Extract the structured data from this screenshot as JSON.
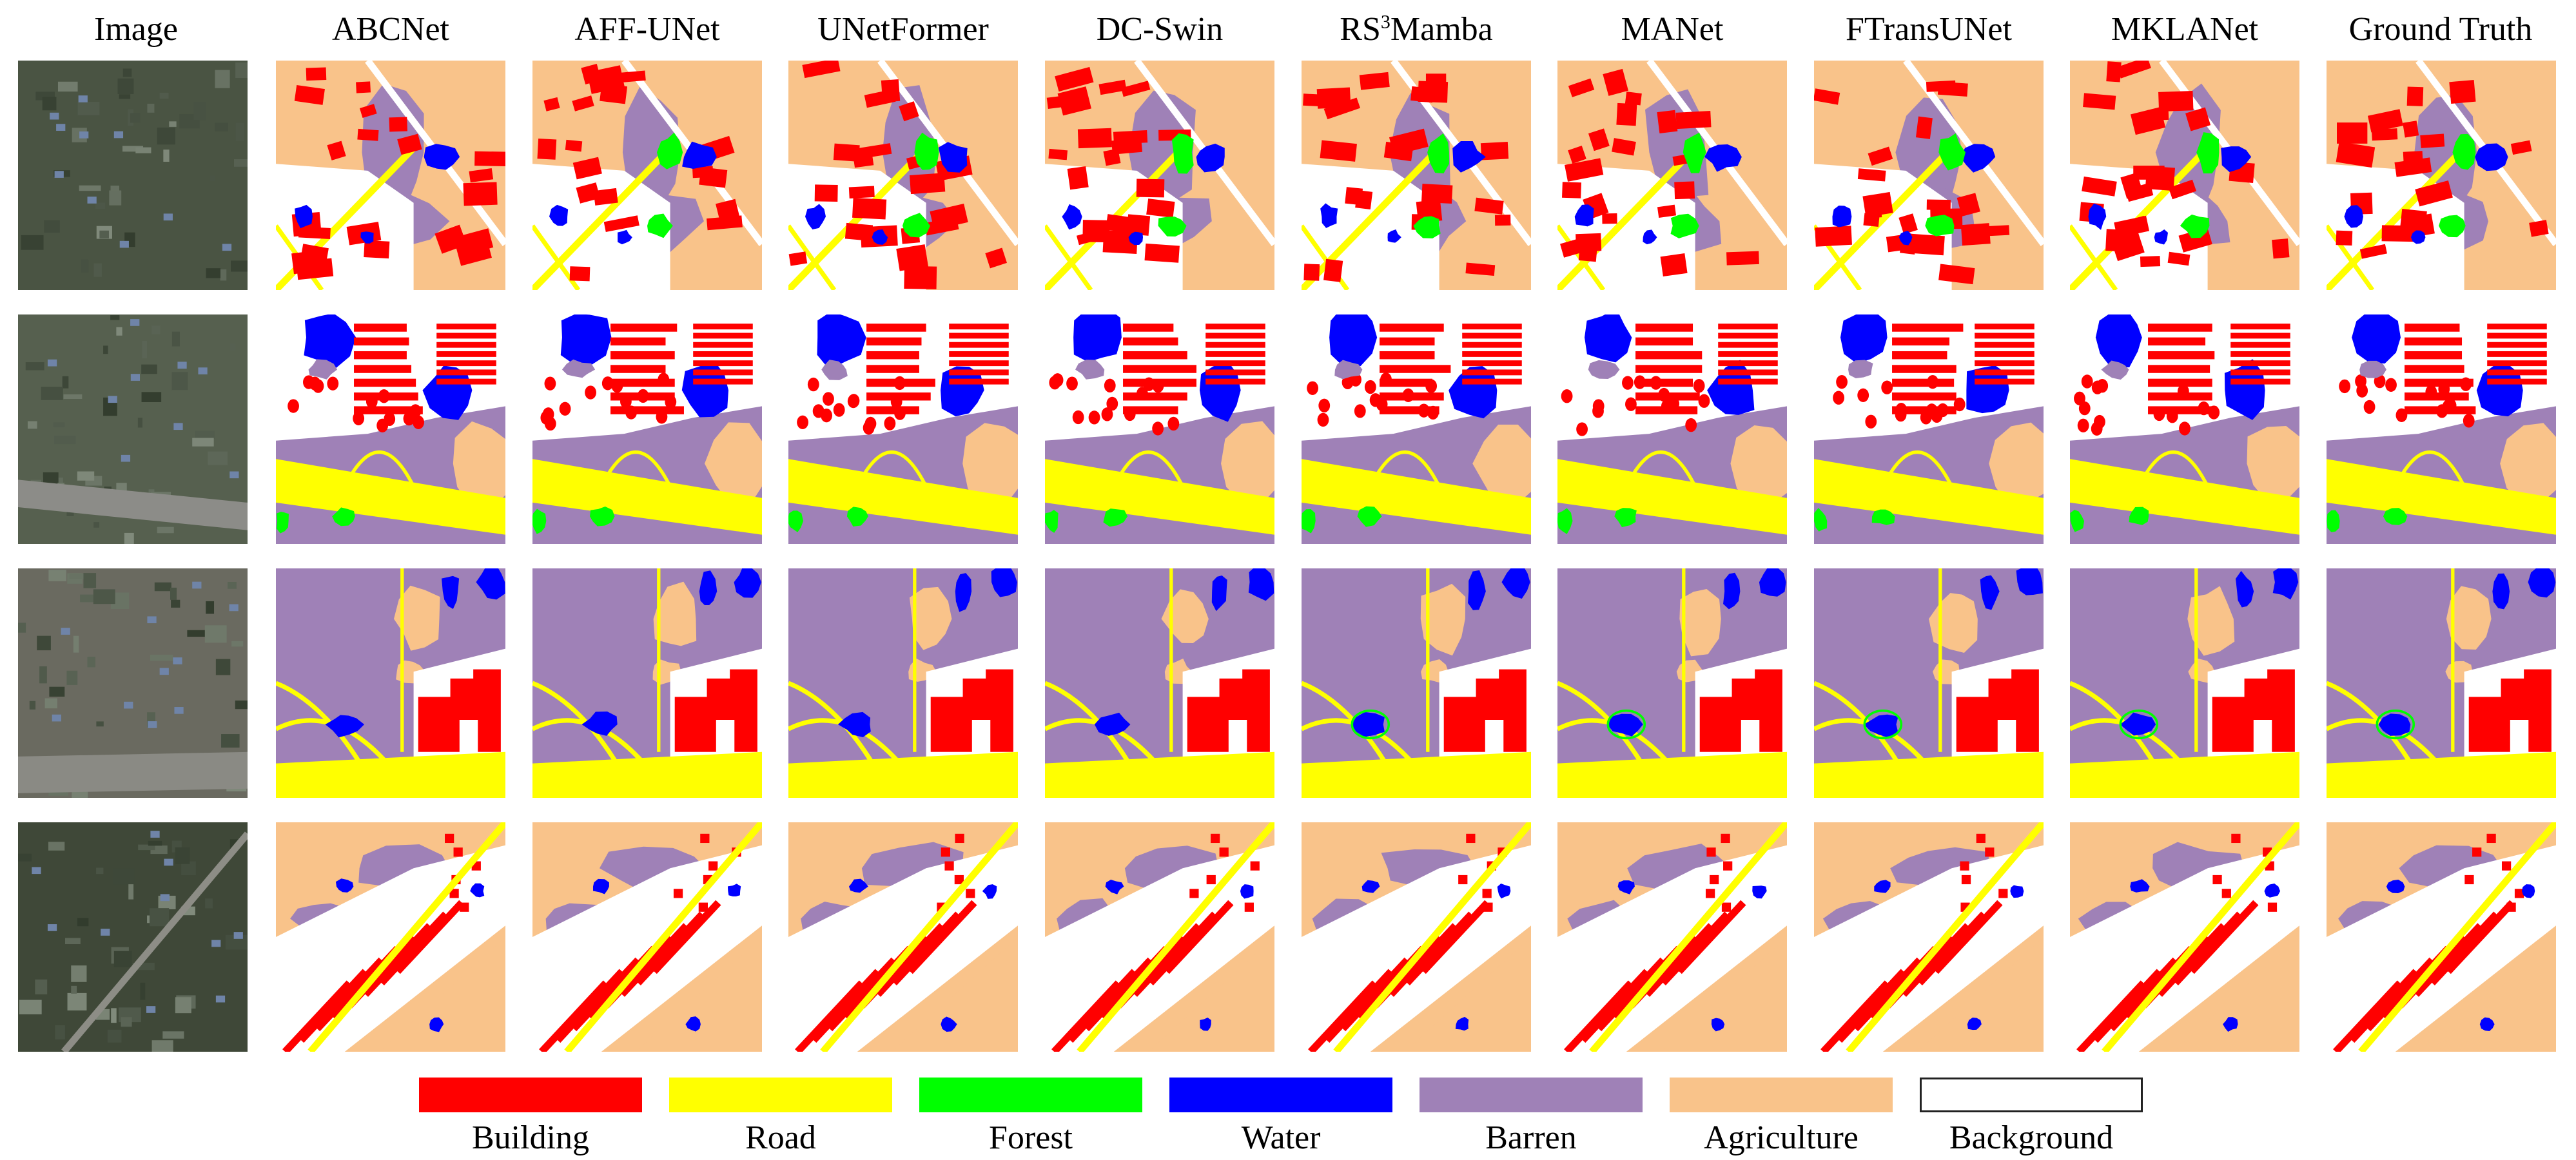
{
  "columns": [
    "Image",
    "ABCNet",
    "AFF-UNet",
    "UNetFormer",
    "DC-Swin",
    "RS3Mamba",
    "MANet",
    "FTransUNet",
    "MKLANet",
    "Ground Truth"
  ],
  "rs3mamba_header": {
    "prefix": "RS",
    "sup": "3",
    "suffix": "Mamba"
  },
  "legend": [
    {
      "label": "Building",
      "color": "#ff0000"
    },
    {
      "label": "Road",
      "color": "#ffff00"
    },
    {
      "label": "Forest",
      "color": "#00ff00"
    },
    {
      "label": "Water",
      "color": "#0000ff"
    },
    {
      "label": "Barren",
      "color": "#9f81b7"
    },
    {
      "label": "Agriculture",
      "color": "#f9c38a"
    },
    {
      "label": "Background",
      "color": "#ffffff"
    }
  ],
  "rows": 4
}
